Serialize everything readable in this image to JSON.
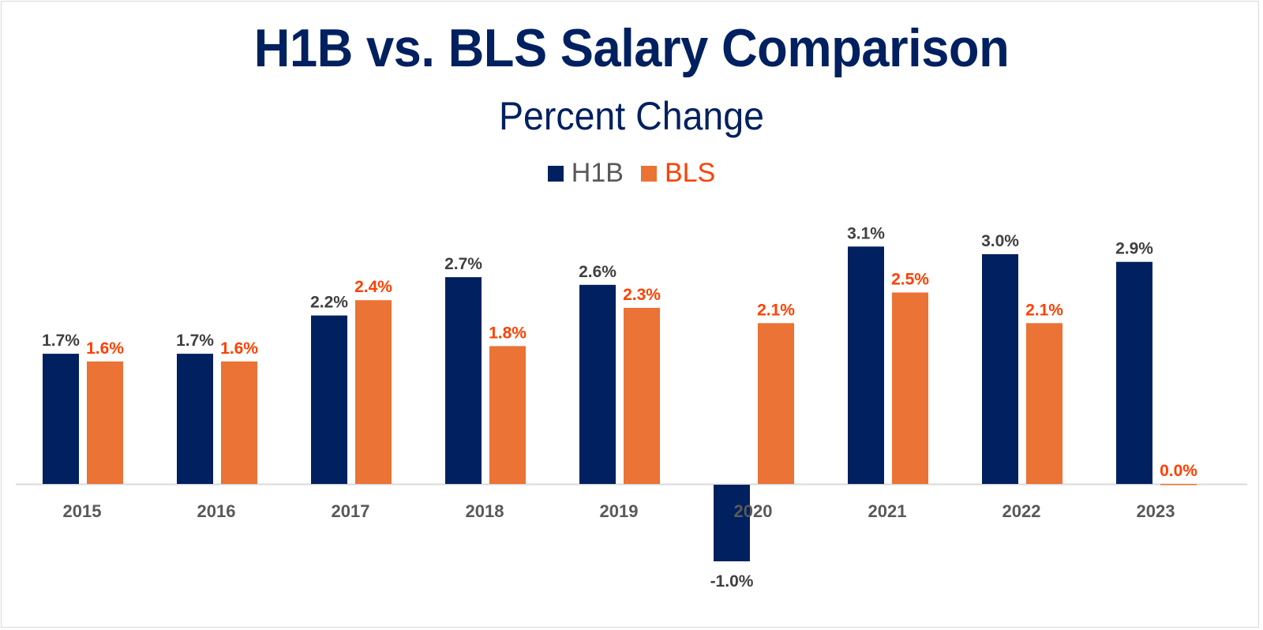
{
  "colors": {
    "h1b": "#002060",
    "bls": "#EA7335",
    "h1b_label": "#404040",
    "bls_label": "#FF4000",
    "axis": "#d9d9d9",
    "category_label": "#595959",
    "legend_h1b_text": "#595959",
    "legend_bls_text": "#FF4000"
  },
  "chart_data": {
    "type": "bar",
    "title": "H1B vs. BLS Salary Comparison",
    "subtitle": "Percent Change",
    "xlabel": "",
    "ylabel": "",
    "categories": [
      "2015",
      "2016",
      "2017",
      "2018",
      "2019",
      "2020",
      "2021",
      "2022",
      "2023"
    ],
    "series": [
      {
        "name": "H1B",
        "values": [
          1.7,
          1.7,
          2.2,
          2.7,
          2.6,
          -1.0,
          3.1,
          3.0,
          2.9
        ],
        "labels": [
          "1.7%",
          "1.7%",
          "2.2%",
          "2.7%",
          "2.6%",
          "-1.0%",
          "3.1%",
          "3.0%",
          "2.9%"
        ]
      },
      {
        "name": "BLS",
        "values": [
          1.6,
          1.6,
          2.4,
          1.8,
          2.3,
          2.1,
          2.5,
          2.1,
          0.0
        ],
        "labels": [
          "1.6%",
          "1.6%",
          "2.4%",
          "1.8%",
          "2.3%",
          "2.1%",
          "2.5%",
          "2.1%",
          "0.0%"
        ]
      }
    ],
    "units": "%",
    "ylim": [
      -1.0,
      3.1
    ],
    "grid": false,
    "y_axis_visible": false,
    "legend": {
      "position": "top-center",
      "entries": [
        "H1B",
        "BLS"
      ]
    }
  }
}
